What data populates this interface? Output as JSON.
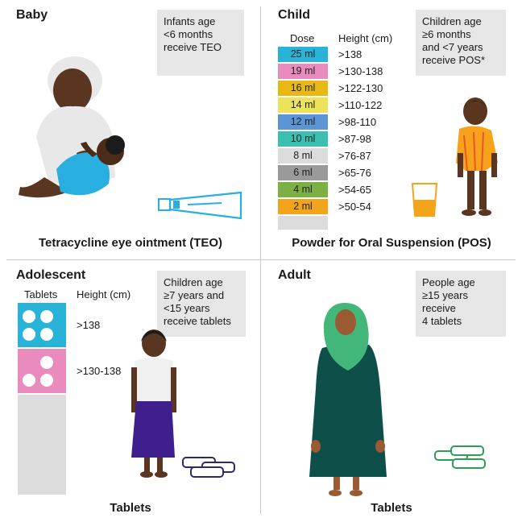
{
  "baby": {
    "title": "Baby",
    "info": [
      "Infants age",
      "<6 months",
      "receive TEO"
    ],
    "caption": "Tetracycline eye ointment (TEO)"
  },
  "child": {
    "title": "Child",
    "info": [
      "Children age",
      "≥6 months",
      "and <7 years",
      "receive POS*"
    ],
    "caption": "Powder for Oral Suspension (POS)",
    "dose_header": "Dose",
    "height_header": "Height (cm)",
    "doses": [
      {
        "dose": "25 ml",
        "height": ">138",
        "color": "#29b3d9"
      },
      {
        "dose": "19 ml",
        "height": ">130-138",
        "color": "#e98bbd"
      },
      {
        "dose": "16 ml",
        "height": ">122-130",
        "color": "#e8b914"
      },
      {
        "dose": "14 ml",
        "height": ">110-122",
        "color": "#ede35a"
      },
      {
        "dose": "12 ml",
        "height": ">98-110",
        "color": "#5c95d6"
      },
      {
        "dose": "10 ml",
        "height": ">87-98",
        "color": "#3bbfb0"
      },
      {
        "dose": "8 ml",
        "height": ">76-87",
        "color": "#dcdcdc"
      },
      {
        "dose": "6 ml",
        "height": ">65-76",
        "color": "#9a9a9a"
      },
      {
        "dose": "4 ml",
        "height": ">54-65",
        "color": "#7bb045"
      },
      {
        "dose": "2 ml",
        "height": ">50-54",
        "color": "#f2a51a"
      }
    ]
  },
  "adolescent": {
    "title": "Adolescent",
    "info": [
      "Children age",
      "≥7 years and",
      "<15 years",
      "receive tablets"
    ],
    "caption": "Tablets",
    "tablets_header": "Tablets",
    "height_header": "Height (cm)",
    "rows": [
      {
        "height": ">138",
        "tablets": 4,
        "color": "#29b3d9"
      },
      {
        "height": ">130-138",
        "tablets": 3,
        "color": "#e98bbd"
      }
    ]
  },
  "adult": {
    "title": "Adult",
    "info": [
      "People age",
      "≥15 years",
      "receive",
      "4 tablets"
    ],
    "caption": "Tablets"
  }
}
